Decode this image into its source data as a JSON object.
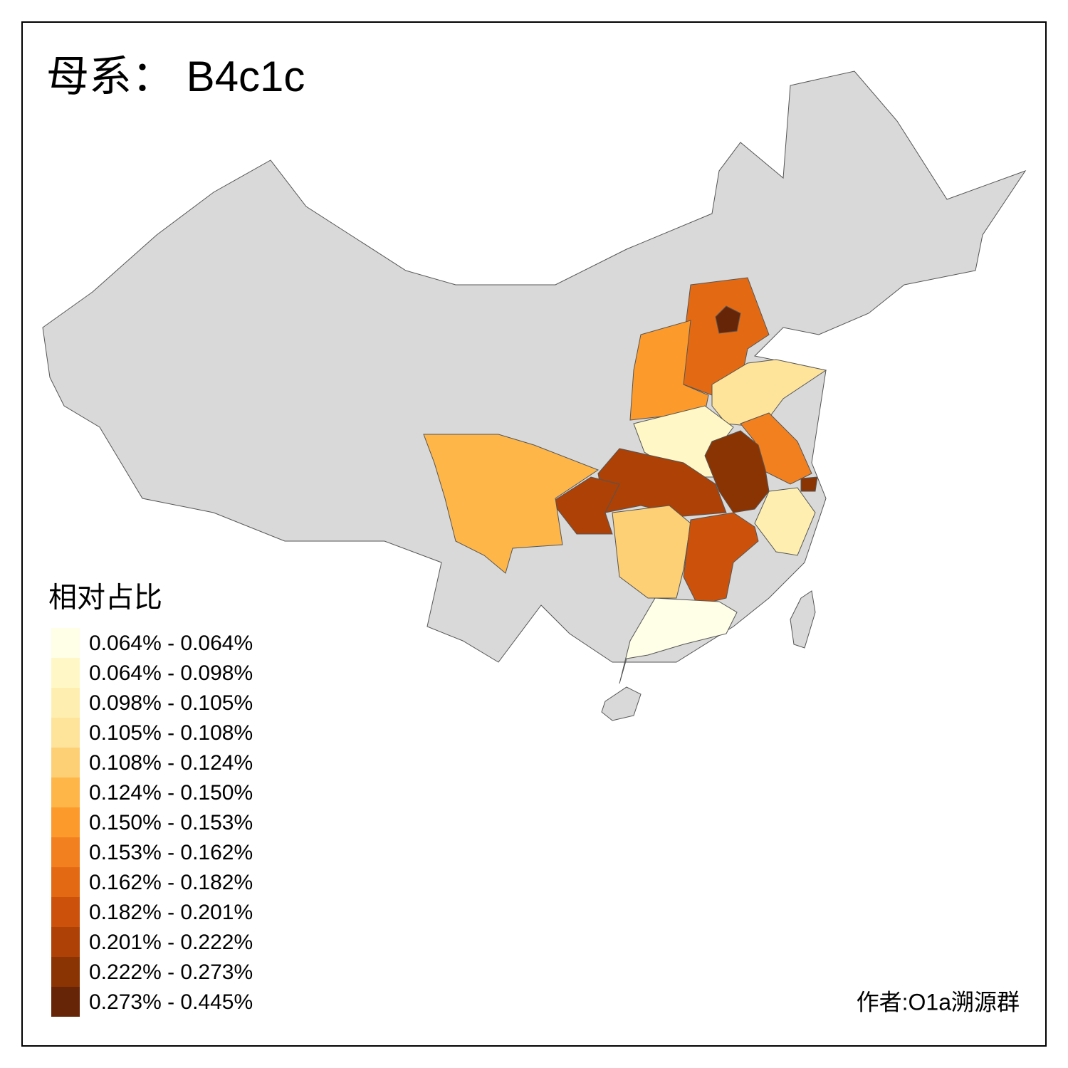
{
  "title": "母系： B4c1c",
  "legend": {
    "title": "相对占比",
    "items": [
      {
        "label": "0.064% - 0.064%",
        "color": "#fffee6"
      },
      {
        "label": "0.064% - 0.098%",
        "color": "#fff8c6"
      },
      {
        "label": "0.098% - 0.105%",
        "color": "#feefb0"
      },
      {
        "label": "0.105% - 0.108%",
        "color": "#fee39a"
      },
      {
        "label": "0.108% - 0.124%",
        "color": "#fed075"
      },
      {
        "label": "0.124% - 0.150%",
        "color": "#feb649"
      },
      {
        "label": "0.150% - 0.153%",
        "color": "#fd9a2c"
      },
      {
        "label": "0.153% - 0.162%",
        "color": "#f2801f"
      },
      {
        "label": "0.162% - 0.182%",
        "color": "#e36a13"
      },
      {
        "label": "0.182% - 0.201%",
        "color": "#cc520b"
      },
      {
        "label": "0.201% - 0.222%",
        "color": "#ad4106"
      },
      {
        "label": "0.222% - 0.273%",
        "color": "#8a3404"
      },
      {
        "label": "0.273% - 0.445%",
        "color": "#662506"
      }
    ]
  },
  "credit": "作者:O1a溯源群"
}
